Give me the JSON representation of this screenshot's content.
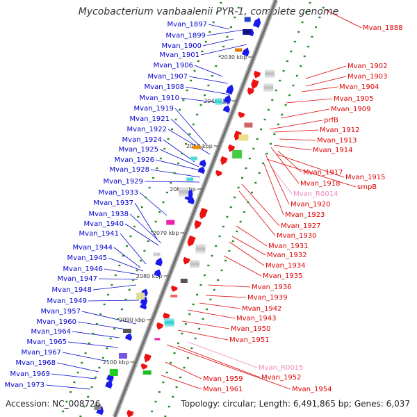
{
  "title": "Mycobacterium vanbaalenii PYR-1, complete genome",
  "accession": "Accession: NC_008726",
  "summary": "Topology: circular; Length: 6,491,865 bp; Genes: 6,037",
  "colors": {
    "backbone": "#909090",
    "forward_label": "#0000cc",
    "reverse_label": "#dd0000",
    "rna_label": "#ee88bb",
    "tick": "#228B22"
  },
  "scale_labels": [
    "2030 kbp",
    "2040 kbp",
    "2050 kbp",
    "2060 kbp",
    "2070 kbp",
    "2080 kbp",
    "2090 kbp",
    "2100 kbp"
  ],
  "left_labels": [
    "Mvan_1897",
    "Mvan_1899",
    "Mvan_1900",
    "Mvan_1901",
    "Mvan_1906",
    "Mvan_1907",
    "Mvan_1908",
    "Mvan_1910",
    "Mvan_1919",
    "Mvan_1921",
    "Mvan_1922",
    "Mvan_1924",
    "Mvan_1925",
    "Mvan_1926",
    "Mvan_1928",
    "Mvan_1929",
    "Mvan_1933",
    "Mvan_1937",
    "Mvan_1938",
    "Mvan_1940",
    "Mvan_1941",
    "Mvan_1944",
    "Mvan_1945",
    "Mvan_1946",
    "Mvan_1947",
    "Mvan_1948",
    "Mvan_1949",
    "Mvan_1957",
    "Mvan_1960",
    "Mvan_1964",
    "Mvan_1965",
    "Mvan_1967",
    "Mvan_1968",
    "Mvan_1969",
    "Mvan_1973"
  ],
  "right_labels": [
    "Mvan_1888",
    "Mvan_1902",
    "Mvan_1903",
    "Mvan_1904",
    "Mvan_1905",
    "Mvan_1909",
    "prfB",
    "Mvan_1912",
    "Mvan_1913",
    "Mvan_1914",
    "Mvan_1917",
    "Mvan_1915",
    "Mvan_1918",
    "smpB",
    "Mvan_R0014",
    "Mvan_1920",
    "Mvan_1923",
    "Mvan_1927",
    "Mvan_1930",
    "Mvan_1931",
    "Mvan_1932",
    "Mvan_1934",
    "Mvan_1935",
    "Mvan_1936",
    "Mvan_1939",
    "Mvan_1942",
    "Mvan_1943",
    "Mvan_1950",
    "Mvan_1951",
    "Mvan_R0015",
    "Mvan_1959",
    "Mvan_1952",
    "Mvan_1961",
    "Mvan_1954"
  ],
  "rna_genes": [
    "Mvan_R0014",
    "Mvan_R0015"
  ]
}
